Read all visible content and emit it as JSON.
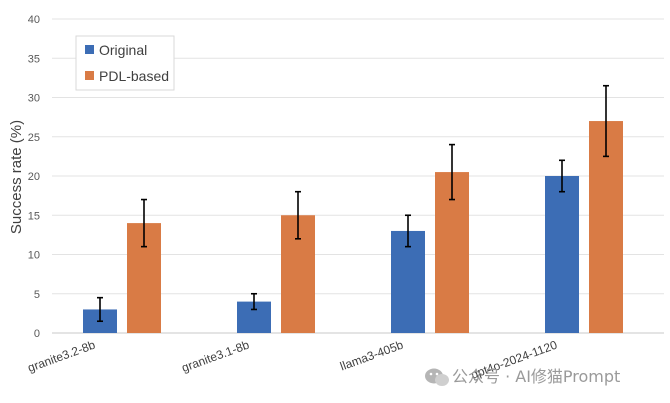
{
  "chart_data": {
    "type": "bar",
    "ylabel": "Success rate (%)",
    "ylim": [
      0,
      40
    ],
    "yticks": [
      0,
      5,
      10,
      15,
      20,
      25,
      30,
      35,
      40
    ],
    "grid": true,
    "legend_position": "top-left",
    "categories": [
      "granite3.2-8b",
      "granite3.1-8b",
      "llama3-405b",
      "gpt4o-2024-1120"
    ],
    "series": [
      {
        "name": "Original",
        "color": "#3c6db5",
        "values": [
          3,
          4,
          13,
          20
        ],
        "error_low": [
          1.5,
          3,
          11,
          18
        ],
        "error_high": [
          4.5,
          5,
          15,
          22
        ]
      },
      {
        "name": "PDL-based",
        "color": "#d97b45",
        "values": [
          14,
          15,
          20.5,
          27
        ],
        "error_low": [
          11,
          12,
          17,
          22.5
        ],
        "error_high": [
          17,
          18,
          24,
          31.5
        ]
      }
    ]
  },
  "watermark": "公众号 · AI修猫Prompt"
}
